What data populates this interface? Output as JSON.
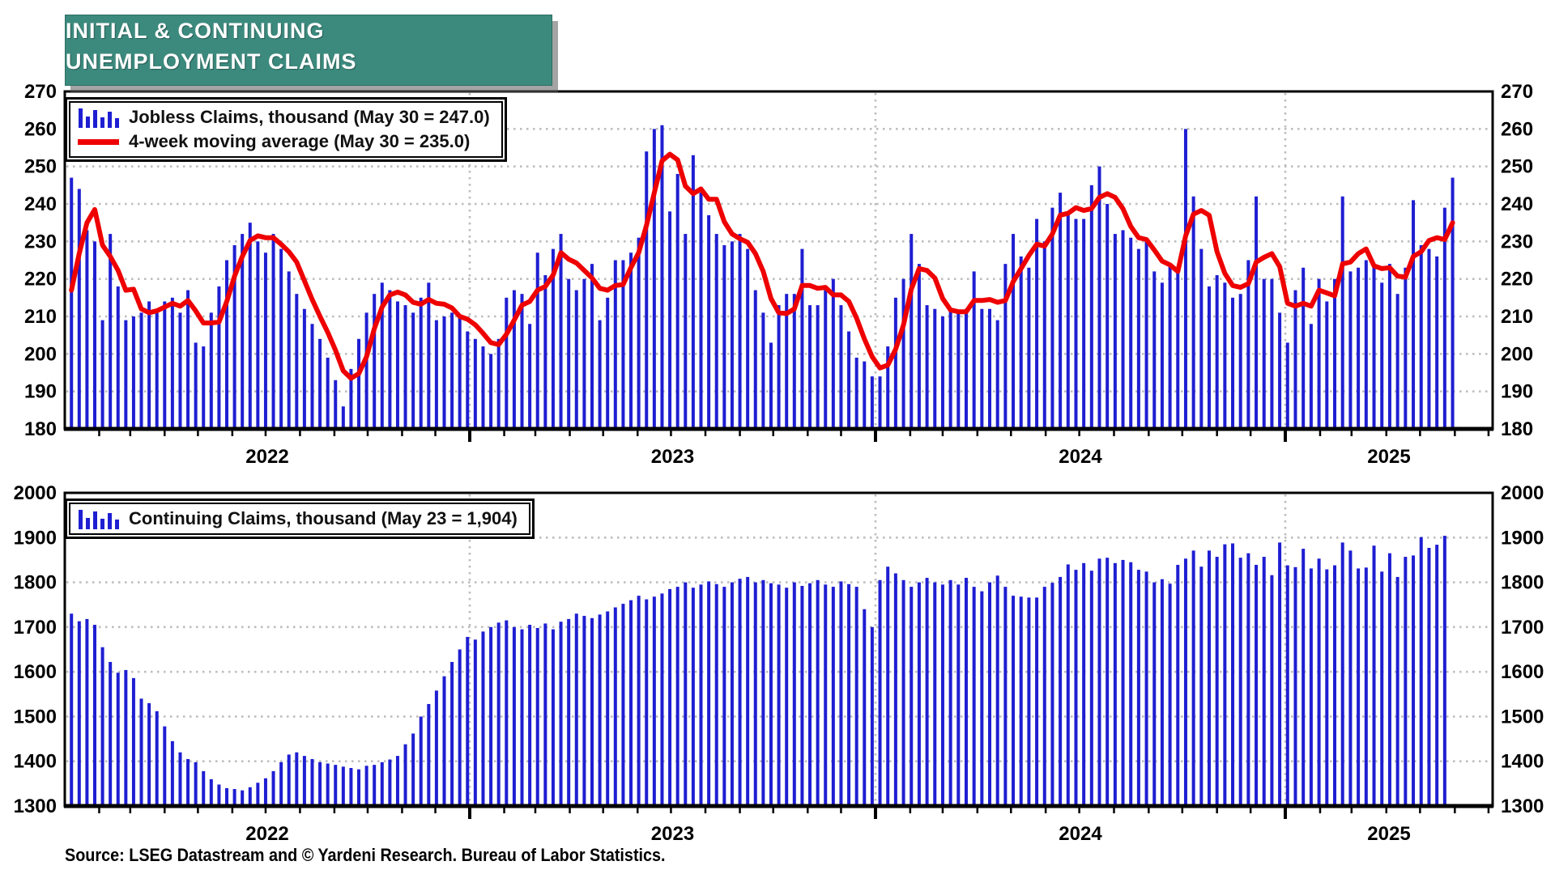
{
  "title": {
    "line1": "INITIAL & CONTINUING",
    "line2": "UNEMPLOYMENT CLAIMS"
  },
  "source": "Source: LSEG Datastream and © Yardeni Research. Bureau of Labor Statistics.",
  "colors": {
    "bar_blue": "#1E1ED2",
    "ma_red": "#EE0000",
    "header_teal": "#3C8A7E",
    "grid_gray": "#BDBDBD",
    "axis_black": "#000000"
  },
  "x_year_labels": [
    "2022",
    "2023",
    "2024",
    "2025"
  ],
  "chart_data": [
    {
      "type": "bar+line",
      "panel": "initial-claims",
      "legend": {
        "bars": "Jobless Claims, thousand (May 30 = 247.0)",
        "ma": "4-week moving average (May 30 = 235.0)"
      },
      "legend_position": "top-left",
      "grid": true,
      "x_start_date": "2022-01-07",
      "x_frequency": "weekly",
      "x_year_labels": [
        "2022",
        "2023",
        "2024",
        "2025"
      ],
      "ylim": [
        180,
        270
      ],
      "y_tick_step": 10,
      "y_tick_labels": [
        "270",
        "260",
        "250",
        "240",
        "230",
        "220",
        "210",
        "200",
        "190",
        "180"
      ],
      "latest": {
        "label": "May 30",
        "bars": 247.0,
        "ma": 235.0
      },
      "series": [
        {
          "name": "Jobless Claims, thousand",
          "style": "bar",
          "values": [
            247,
            244,
            233,
            230,
            209,
            232,
            218,
            209,
            210,
            211,
            214,
            211,
            214,
            215,
            211,
            217,
            203,
            202,
            211,
            218,
            225,
            229,
            232,
            235,
            230,
            227,
            232,
            228,
            222,
            216,
            212,
            208,
            204,
            199,
            193,
            186,
            196,
            204,
            211,
            216,
            219,
            217,
            214,
            213,
            211,
            215,
            219,
            209,
            210,
            211,
            210,
            206,
            204,
            202,
            200,
            204,
            215,
            217,
            216,
            208,
            227,
            221,
            228,
            232,
            220,
            217,
            220,
            224,
            209,
            215,
            225,
            225,
            227,
            231,
            254,
            260,
            261,
            238,
            248,
            232,
            253,
            243,
            237,
            232,
            229,
            230,
            232,
            228,
            217,
            211,
            203,
            213,
            216,
            216,
            228,
            213,
            213,
            217,
            220,
            213,
            206,
            199,
            198,
            194,
            194,
            202,
            215,
            220,
            232,
            224,
            213,
            212,
            210,
            212,
            211,
            212,
            222,
            212,
            212,
            209,
            224,
            232,
            226,
            223,
            236,
            230,
            239,
            243,
            238,
            236,
            236,
            245,
            250,
            240,
            232,
            233,
            231,
            228,
            230,
            222,
            219,
            224,
            223,
            260,
            242,
            228,
            218,
            221,
            219,
            215,
            216,
            225,
            242,
            220,
            220,
            211,
            203,
            217,
            223,
            208,
            220,
            214,
            220,
            242,
            222,
            223,
            225,
            224,
            219,
            224,
            216,
            223,
            241,
            229,
            228,
            226,
            239,
            247
          ]
        },
        {
          "name": "4-week moving average",
          "style": "line",
          "derived": "trailing 4-week mean of bar series",
          "seed_values": [
            205,
            200,
            216
          ]
        }
      ]
    },
    {
      "type": "bar",
      "panel": "continuing-claims",
      "legend": {
        "bars": "Continuing Claims, thousand (May 23 = 1,904)"
      },
      "legend_position": "top-left",
      "grid": true,
      "x_start_date": "2022-01-07",
      "x_frequency": "weekly",
      "x_year_labels": [
        "2022",
        "2023",
        "2024",
        "2025"
      ],
      "ylim": [
        1300,
        2000
      ],
      "y_tick_step": 100,
      "y_tick_labels": [
        "2000",
        "1900",
        "1800",
        "1700",
        "1600",
        "1500",
        "1400",
        "1300"
      ],
      "latest": {
        "label": "May 23",
        "bars": 1904
      },
      "series": [
        {
          "name": "Continuing Claims, thousand",
          "style": "bar",
          "values": [
            1730,
            1713,
            1718,
            1705,
            1655,
            1622,
            1598,
            1604,
            1586,
            1540,
            1530,
            1512,
            1478,
            1445,
            1420,
            1405,
            1398,
            1378,
            1360,
            1348,
            1340,
            1338,
            1335,
            1342,
            1352,
            1362,
            1378,
            1398,
            1415,
            1420,
            1412,
            1405,
            1398,
            1395,
            1392,
            1388,
            1385,
            1382,
            1390,
            1392,
            1398,
            1404,
            1412,
            1438,
            1462,
            1500,
            1528,
            1558,
            1590,
            1622,
            1650,
            1678,
            1672,
            1690,
            1700,
            1710,
            1715,
            1700,
            1695,
            1705,
            1698,
            1708,
            1695,
            1712,
            1718,
            1730,
            1725,
            1720,
            1728,
            1735,
            1744,
            1752,
            1760,
            1770,
            1762,
            1768,
            1775,
            1785,
            1790,
            1800,
            1788,
            1795,
            1802,
            1796,
            1790,
            1800,
            1808,
            1812,
            1800,
            1805,
            1798,
            1795,
            1788,
            1800,
            1792,
            1798,
            1805,
            1795,
            1790,
            1802,
            1796,
            1790,
            1740,
            1700,
            1805,
            1835,
            1820,
            1805,
            1790,
            1800,
            1810,
            1800,
            1795,
            1805,
            1795,
            1810,
            1790,
            1780,
            1800,
            1815,
            1790,
            1770,
            1768,
            1766,
            1766,
            1790,
            1799,
            1812,
            1840,
            1828,
            1843,
            1826,
            1853,
            1855,
            1843,
            1850,
            1845,
            1828,
            1824,
            1800,
            1807,
            1797,
            1839,
            1853,
            1871,
            1835,
            1871,
            1857,
            1885,
            1887,
            1855,
            1865,
            1839,
            1857,
            1816,
            1889,
            1838,
            1834,
            1875,
            1831,
            1853,
            1829,
            1838,
            1889,
            1871,
            1831,
            1833,
            1882,
            1824,
            1865,
            1812,
            1857,
            1860,
            1901,
            1877,
            1884,
            1904
          ]
        }
      ]
    }
  ]
}
